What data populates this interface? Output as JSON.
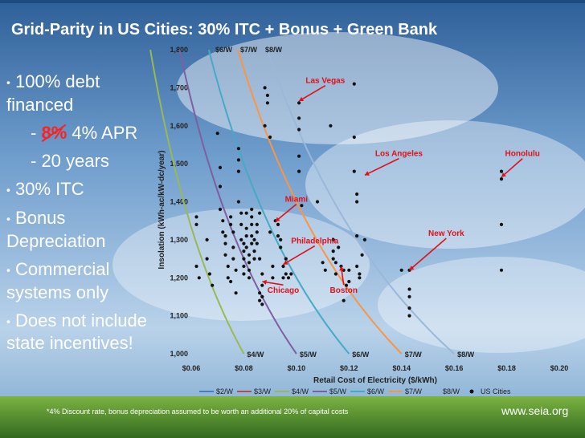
{
  "title": "Grid-Parity in US Cities: 30% ITC + Bonus + Green Bank",
  "bullets": {
    "b1": "100% debt financed",
    "b2_strike": "8%",
    "b2_rest": " 4% APR",
    "b2_prefix": "- ",
    "b3": "- 20 years",
    "b4": "30% ITC",
    "b5": "Bonus Depreciation",
    "b6": "Commercial systems only",
    "b7": "Does not include state incentives!"
  },
  "footnote": "*4% Discount rate, bonus depreciation assumed to be worth an additional 20% of capital costs",
  "brand": "www.seia.org",
  "colors": {
    "2": "#4a7ebb",
    "3": "#be4b48",
    "4": "#98b954",
    "5": "#7d60a0",
    "6": "#46aac5",
    "7": "#f79646",
    "8": "#9bb7d9",
    "point": "#111111",
    "city": "#e0101a"
  },
  "chart_data": {
    "type": "scatter",
    "xlabel": "Retail Cost of Electricity ($/kWh)",
    "ylabel": "Insolation (kWh-ac/kW-dc/year)",
    "xlim": [
      0.06,
      0.2
    ],
    "ylim": [
      1000,
      1800
    ],
    "xticks": [
      "$0.06",
      "$0.08",
      "$0.10",
      "$0.12",
      "$0.14",
      "$0.16",
      "$0.18",
      "$0.20"
    ],
    "yticks": [
      "1,000",
      "1,100",
      "1,200",
      "1,300",
      "1,400",
      "1,500",
      "1,600",
      "1,700",
      "1,800"
    ],
    "curve_top_labels": [
      "$6/W",
      "$7/W",
      "$8/W"
    ],
    "curve_bottom_labels": [
      "$4/W",
      "$5/W",
      "$6/W",
      "$7/W",
      "$8/W"
    ],
    "series": [
      {
        "name": "$2/W",
        "k": 0
      },
      {
        "name": "$3/W",
        "k": 0
      },
      {
        "name": "$4/W",
        "k": 80
      },
      {
        "name": "$5/W",
        "k": 100
      },
      {
        "name": "$6/W",
        "k": 120
      },
      {
        "name": "$7/W",
        "k": 140
      },
      {
        "name": "$8/W",
        "k": 160
      }
    ],
    "legend": [
      "$2/W",
      "$3/W",
      "$4/W",
      "$5/W",
      "$6/W",
      "$7/W",
      "$8/W",
      "US Cities"
    ],
    "cities": [
      {
        "name": "Las Vegas",
        "label_x": 0.111,
        "label_y": 1712,
        "x": 0.101,
        "y": 1665
      },
      {
        "name": "Los Angeles",
        "label_x": 0.139,
        "label_y": 1520,
        "x": 0.126,
        "y": 1470
      },
      {
        "name": "Honolulu",
        "label_x": 0.186,
        "label_y": 1520,
        "x": 0.178,
        "y": 1465
      },
      {
        "name": "Miami",
        "label_x": 0.1,
        "label_y": 1400,
        "x": 0.092,
        "y": 1348
      },
      {
        "name": "Philadelphia",
        "label_x": 0.107,
        "label_y": 1290,
        "x": 0.095,
        "y": 1235
      },
      {
        "name": "New York",
        "label_x": 0.157,
        "label_y": 1310,
        "x": 0.143,
        "y": 1220
      },
      {
        "name": "Chicago",
        "label_x": 0.095,
        "label_y": 1160,
        "x": 0.087,
        "y": 1190
      },
      {
        "name": "Boston",
        "label_x": 0.118,
        "label_y": 1160,
        "x": 0.117,
        "y": 1230
      }
    ],
    "points": [
      [
        0.062,
        1360
      ],
      [
        0.062,
        1340
      ],
      [
        0.062,
        1230
      ],
      [
        0.063,
        1200
      ],
      [
        0.066,
        1300
      ],
      [
        0.066,
        1250
      ],
      [
        0.067,
        1210
      ],
      [
        0.068,
        1180
      ],
      [
        0.07,
        1580
      ],
      [
        0.071,
        1490
      ],
      [
        0.071,
        1440
      ],
      [
        0.071,
        1380
      ],
      [
        0.072,
        1350
      ],
      [
        0.072,
        1320
      ],
      [
        0.073,
        1310
      ],
      [
        0.073,
        1290
      ],
      [
        0.073,
        1260
      ],
      [
        0.074,
        1230
      ],
      [
        0.074,
        1200
      ],
      [
        0.075,
        1190
      ],
      [
        0.075,
        1360
      ],
      [
        0.075,
        1340
      ],
      [
        0.076,
        1320
      ],
      [
        0.076,
        1280
      ],
      [
        0.076,
        1250
      ],
      [
        0.077,
        1220
      ],
      [
        0.077,
        1160
      ],
      [
        0.078,
        1540
      ],
      [
        0.078,
        1510
      ],
      [
        0.078,
        1480
      ],
      [
        0.078,
        1400
      ],
      [
        0.079,
        1370
      ],
      [
        0.079,
        1340
      ],
      [
        0.079,
        1300
      ],
      [
        0.08,
        1290
      ],
      [
        0.08,
        1270
      ],
      [
        0.08,
        1250
      ],
      [
        0.08,
        1230
      ],
      [
        0.08,
        1210
      ],
      [
        0.081,
        1370
      ],
      [
        0.081,
        1330
      ],
      [
        0.081,
        1310
      ],
      [
        0.081,
        1280
      ],
      [
        0.082,
        1260
      ],
      [
        0.082,
        1240
      ],
      [
        0.082,
        1220
      ],
      [
        0.082,
        1200
      ],
      [
        0.083,
        1380
      ],
      [
        0.083,
        1360
      ],
      [
        0.083,
        1340
      ],
      [
        0.083,
        1310
      ],
      [
        0.083,
        1290
      ],
      [
        0.084,
        1300
      ],
      [
        0.084,
        1270
      ],
      [
        0.084,
        1250
      ],
      [
        0.085,
        1340
      ],
      [
        0.085,
        1320
      ],
      [
        0.085,
        1290
      ],
      [
        0.086,
        1370
      ],
      [
        0.086,
        1250
      ],
      [
        0.086,
        1160
      ],
      [
        0.086,
        1140
      ],
      [
        0.087,
        1130
      ],
      [
        0.087,
        1150
      ],
      [
        0.087,
        1180
      ],
      [
        0.087,
        1210
      ],
      [
        0.088,
        1700
      ],
      [
        0.088,
        1600
      ],
      [
        0.089,
        1680
      ],
      [
        0.089,
        1660
      ],
      [
        0.09,
        1570
      ],
      [
        0.09,
        1320
      ],
      [
        0.091,
        1230
      ],
      [
        0.091,
        1200
      ],
      [
        0.092,
        1350
      ],
      [
        0.093,
        1340
      ],
      [
        0.093,
        1310
      ],
      [
        0.094,
        1300
      ],
      [
        0.094,
        1280
      ],
      [
        0.095,
        1230
      ],
      [
        0.095,
        1200
      ],
      [
        0.096,
        1250
      ],
      [
        0.096,
        1210
      ],
      [
        0.097,
        1200
      ],
      [
        0.098,
        1210
      ],
      [
        0.101,
        1660
      ],
      [
        0.101,
        1620
      ],
      [
        0.101,
        1590
      ],
      [
        0.101,
        1520
      ],
      [
        0.101,
        1480
      ],
      [
        0.102,
        1390
      ],
      [
        0.108,
        1400
      ],
      [
        0.11,
        1240
      ],
      [
        0.111,
        1220
      ],
      [
        0.113,
        1600
      ],
      [
        0.114,
        1300
      ],
      [
        0.114,
        1270
      ],
      [
        0.114,
        1250
      ],
      [
        0.115,
        1240
      ],
      [
        0.115,
        1210
      ],
      [
        0.116,
        1280
      ],
      [
        0.117,
        1230
      ],
      [
        0.118,
        1220
      ],
      [
        0.118,
        1140
      ],
      [
        0.119,
        1180
      ],
      [
        0.12,
        1220
      ],
      [
        0.12,
        1190
      ],
      [
        0.122,
        1710
      ],
      [
        0.122,
        1570
      ],
      [
        0.122,
        1480
      ],
      [
        0.123,
        1420
      ],
      [
        0.123,
        1400
      ],
      [
        0.123,
        1310
      ],
      [
        0.123,
        1230
      ],
      [
        0.124,
        1210
      ],
      [
        0.124,
        1200
      ],
      [
        0.125,
        1260
      ],
      [
        0.126,
        1300
      ],
      [
        0.14,
        1220
      ],
      [
        0.143,
        1220
      ],
      [
        0.143,
        1170
      ],
      [
        0.143,
        1150
      ],
      [
        0.143,
        1120
      ],
      [
        0.143,
        1100
      ],
      [
        0.178,
        1480
      ],
      [
        0.178,
        1460
      ],
      [
        0.178,
        1340
      ],
      [
        0.178,
        1220
      ]
    ]
  }
}
